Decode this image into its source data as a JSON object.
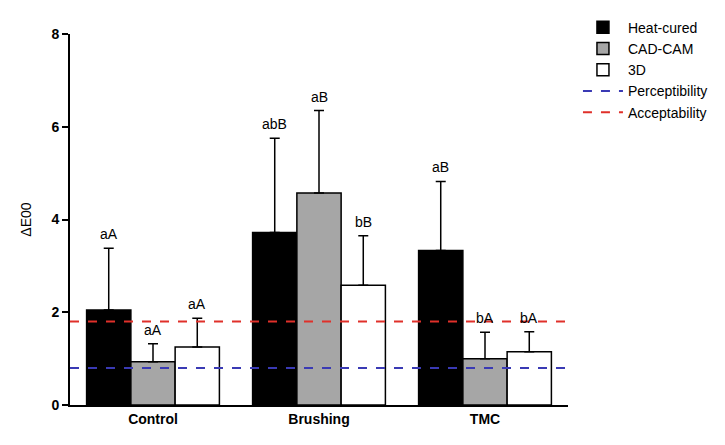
{
  "chart_data": {
    "type": "bar",
    "y_label": "ΔE00",
    "categories": [
      "Control",
      "Brushing",
      "TMC"
    ],
    "series": [
      {
        "name": "Heat-cured",
        "color": "#000000",
        "values": [
          2.05,
          3.72,
          3.33
        ],
        "errors": [
          1.33,
          2.03,
          1.49
        ],
        "letters": [
          "aA",
          "abB",
          "aB"
        ]
      },
      {
        "name": "CAD-CAM",
        "color": "#a6a6a6",
        "values": [
          0.93,
          4.57,
          1.0
        ],
        "errors": [
          0.39,
          1.78,
          0.57
        ],
        "letters": [
          "aA",
          "aB",
          "bA"
        ]
      },
      {
        "name": "3D",
        "color": "#ffffff",
        "values": [
          1.25,
          2.58,
          1.15
        ],
        "errors": [
          0.62,
          1.07,
          0.43
        ],
        "letters": [
          "aA",
          "bB",
          "bA"
        ]
      }
    ],
    "reference_lines": [
      {
        "name": "Perceptibility",
        "color": "#3a3ab4",
        "value": 0.8,
        "line_style": "dashed"
      },
      {
        "name": "Acceptability",
        "color": "#e0302a",
        "value": 1.8,
        "line_style": "dashed"
      }
    ],
    "ylim": [
      0,
      8
    ],
    "yticks": [
      0,
      2,
      4,
      6,
      8
    ],
    "grid": false,
    "legend": "right"
  }
}
